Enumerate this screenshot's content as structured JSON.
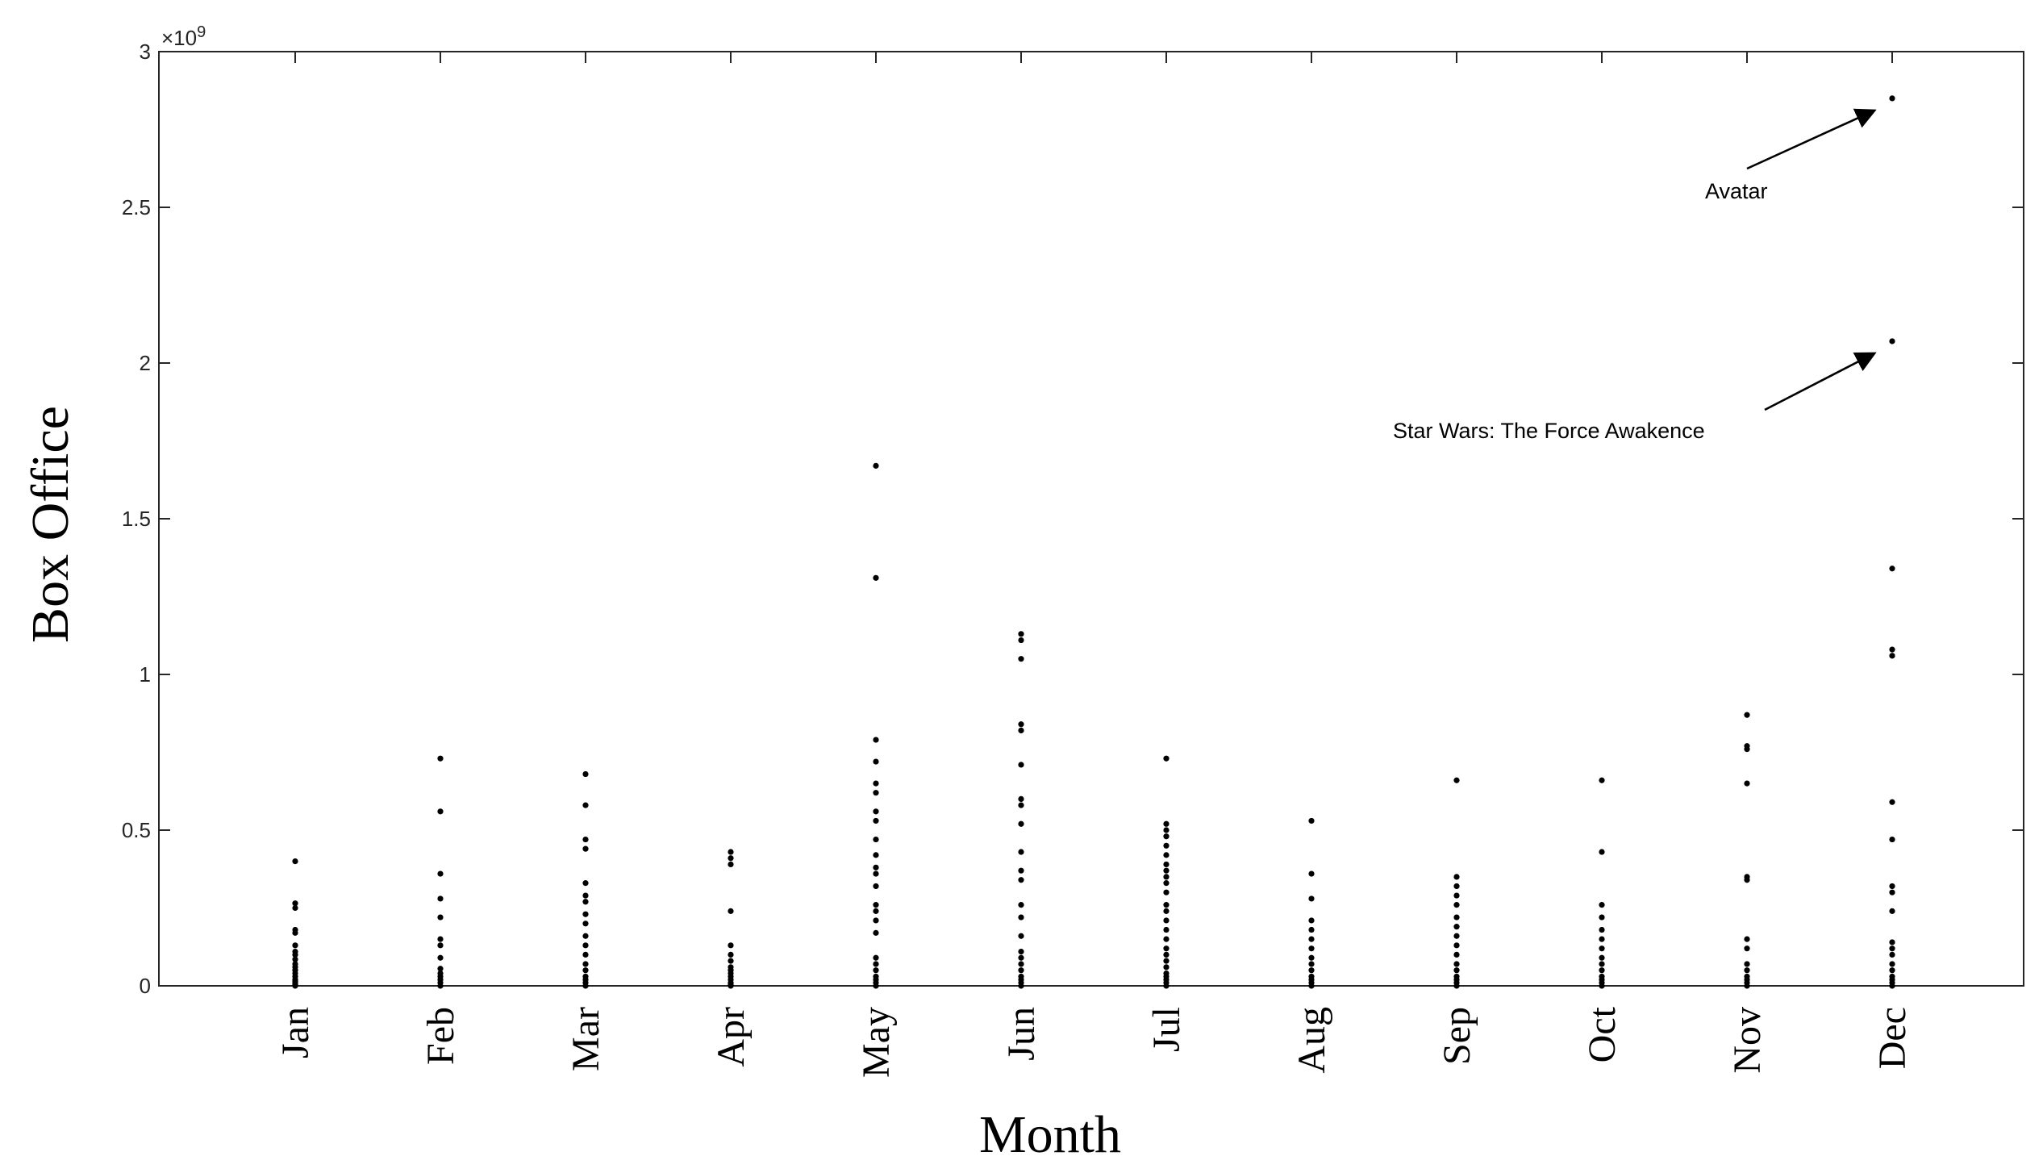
{
  "chart_data": {
    "type": "scatter",
    "xlabel": "Month",
    "ylabel": "Box Office",
    "categories": [
      "Jan",
      "Feb",
      "Mar",
      "Apr",
      "May",
      "Jun",
      "Jul",
      "Aug",
      "Sep",
      "Oct",
      "Nov",
      "Dec"
    ],
    "ylim": [
      0,
      3000000000
    ],
    "yticks": [
      0,
      500000000,
      1000000000,
      1500000000,
      2000000000,
      2500000000,
      3000000000
    ],
    "ytick_labels": [
      "0",
      "0.5",
      "1",
      "1.5",
      "2",
      "2.5",
      "3"
    ],
    "y_exponent_label": "×10",
    "y_exponent_power": "9",
    "grid": false,
    "legend": "none",
    "marker_color": "#000000",
    "series": [
      {
        "values": [
          [
            0.0,
            0.005,
            0.01,
            0.015,
            0.02,
            0.03,
            0.04,
            0.05,
            0.06,
            0.07,
            0.085,
            0.1,
            0.11,
            0.13,
            0.17,
            0.18,
            0.25,
            0.265,
            0.4
          ],
          [
            0.0,
            0.01,
            0.02,
            0.03,
            0.04,
            0.055,
            0.09,
            0.13,
            0.15,
            0.22,
            0.28,
            0.36,
            0.56,
            0.73
          ],
          [
            0.0,
            0.01,
            0.02,
            0.03,
            0.05,
            0.07,
            0.1,
            0.13,
            0.16,
            0.2,
            0.23,
            0.27,
            0.29,
            0.33,
            0.44,
            0.47,
            0.58,
            0.68
          ],
          [
            0.0,
            0.005,
            0.01,
            0.02,
            0.03,
            0.04,
            0.05,
            0.06,
            0.08,
            0.1,
            0.13,
            0.24,
            0.39,
            0.41,
            0.43
          ],
          [
            0.0,
            0.01,
            0.02,
            0.03,
            0.05,
            0.07,
            0.09,
            0.17,
            0.21,
            0.24,
            0.26,
            0.32,
            0.36,
            0.38,
            0.42,
            0.47,
            0.53,
            0.56,
            0.62,
            0.65,
            0.72,
            0.79,
            1.31,
            1.67
          ],
          [
            0.0,
            0.01,
            0.02,
            0.03,
            0.05,
            0.07,
            0.09,
            0.11,
            0.16,
            0.22,
            0.26,
            0.34,
            0.37,
            0.43,
            0.52,
            0.58,
            0.6,
            0.71,
            0.82,
            0.84,
            1.05,
            1.11,
            1.13
          ],
          [
            0.0,
            0.01,
            0.02,
            0.03,
            0.04,
            0.06,
            0.08,
            0.1,
            0.12,
            0.15,
            0.18,
            0.21,
            0.24,
            0.26,
            0.3,
            0.33,
            0.35,
            0.37,
            0.39,
            0.42,
            0.45,
            0.48,
            0.5,
            0.52,
            0.73
          ],
          [
            0.0,
            0.01,
            0.02,
            0.03,
            0.05,
            0.07,
            0.09,
            0.12,
            0.15,
            0.18,
            0.21,
            0.28,
            0.36,
            0.53
          ],
          [
            0.0,
            0.01,
            0.02,
            0.03,
            0.05,
            0.07,
            0.1,
            0.13,
            0.16,
            0.19,
            0.22,
            0.26,
            0.29,
            0.32,
            0.35,
            0.66
          ],
          [
            0.0,
            0.01,
            0.02,
            0.03,
            0.05,
            0.07,
            0.09,
            0.12,
            0.15,
            0.18,
            0.22,
            0.26,
            0.43,
            0.66
          ],
          [
            0.0,
            0.01,
            0.02,
            0.03,
            0.05,
            0.07,
            0.12,
            0.15,
            0.34,
            0.35,
            0.65,
            0.76,
            0.77,
            0.87
          ],
          [
            0.0,
            0.01,
            0.02,
            0.03,
            0.05,
            0.07,
            0.1,
            0.12,
            0.14,
            0.24,
            0.3,
            0.32,
            0.47,
            0.59,
            1.06,
            1.08,
            1.34,
            2.07,
            2.85
          ]
        ]
      }
    ],
    "annotations": [
      {
        "text": "Avatar",
        "month": "Dec",
        "value": 2850000000
      },
      {
        "text": "Star Wars: The Force Awakence",
        "month": "Dec",
        "value": 2070000000
      }
    ]
  }
}
